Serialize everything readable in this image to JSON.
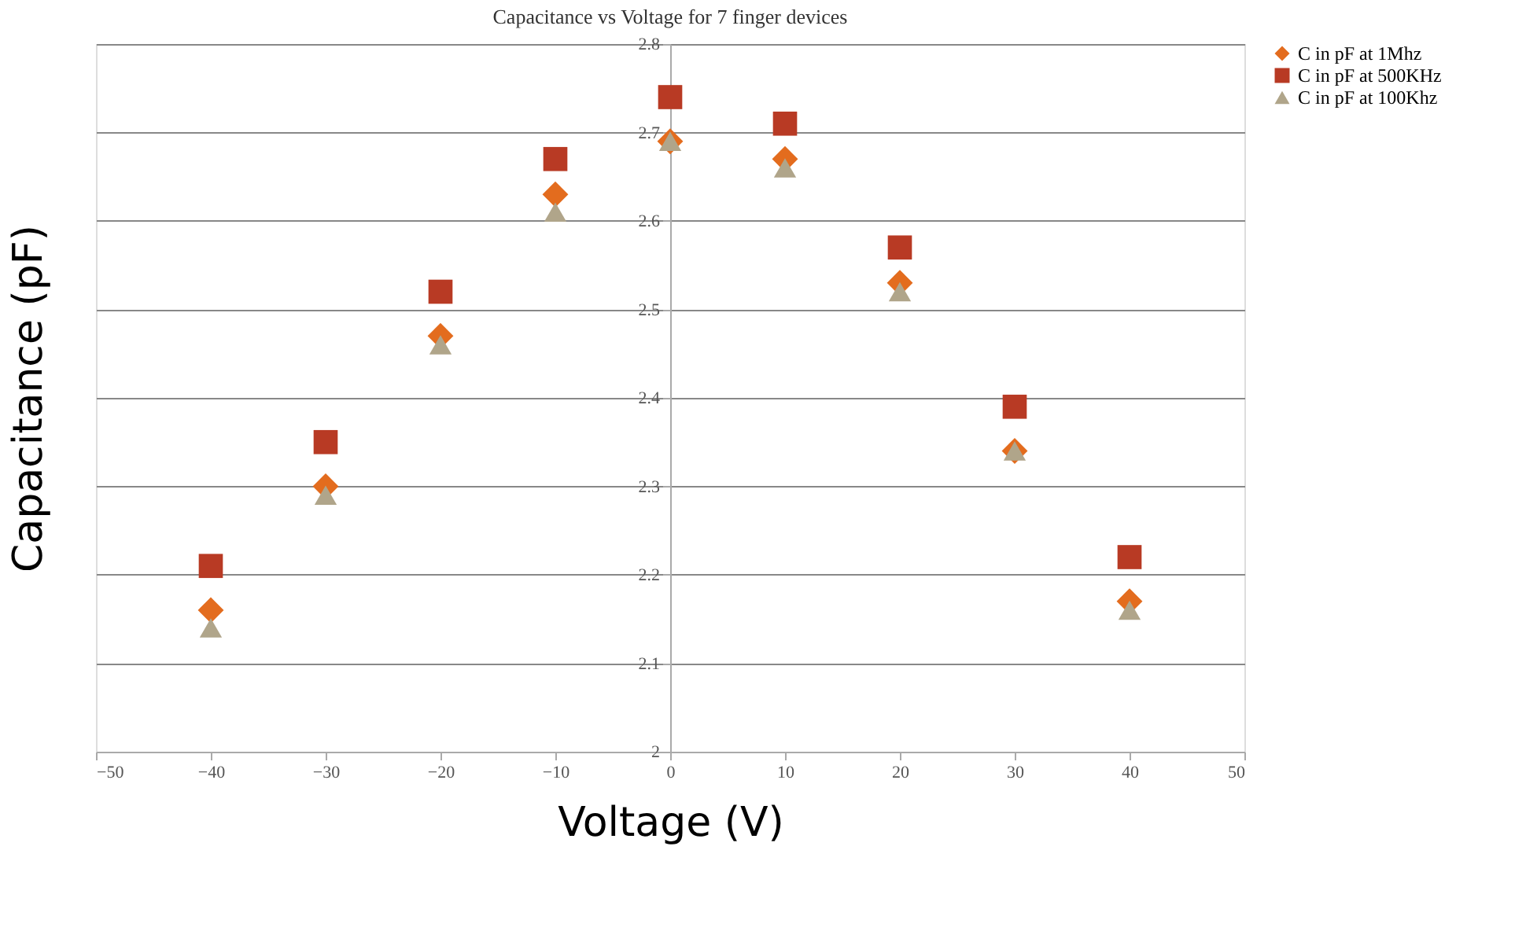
{
  "chart_data": {
    "type": "scatter",
    "title": "Capacitance vs Voltage for 7 finger devices",
    "xlabel": "Voltage (V)",
    "ylabel": "Capacitance (pF)",
    "x": [
      -40,
      -30,
      -20,
      -10,
      0,
      10,
      20,
      30,
      40
    ],
    "series": [
      {
        "name": "C in pF at 1Mhz",
        "color": "#e36c1e",
        "marker": "diamond",
        "values": [
          2.16,
          2.3,
          2.47,
          2.63,
          2.69,
          2.67,
          2.53,
          2.34,
          2.17
        ]
      },
      {
        "name": "C in pF at 500KHz",
        "color": "#b83a24",
        "marker": "square",
        "values": [
          2.21,
          2.35,
          2.52,
          2.67,
          2.74,
          2.71,
          2.57,
          2.39,
          2.22
        ]
      },
      {
        "name": "C in pF at 100Khz",
        "color": "#b0a58a",
        "marker": "triangle",
        "values": [
          2.14,
          2.29,
          2.46,
          2.61,
          2.69,
          2.66,
          2.52,
          2.34,
          2.16
        ]
      }
    ],
    "xlim": [
      -50,
      50
    ],
    "xticks": [
      -50,
      -40,
      -30,
      -20,
      -10,
      0,
      10,
      20,
      30,
      40,
      50
    ],
    "ylim": [
      2,
      2.8
    ],
    "yticks": [
      2,
      2.1,
      2.2,
      2.3,
      2.4,
      2.5,
      2.6,
      2.7,
      2.8
    ],
    "grid": "y",
    "legend": "right"
  }
}
